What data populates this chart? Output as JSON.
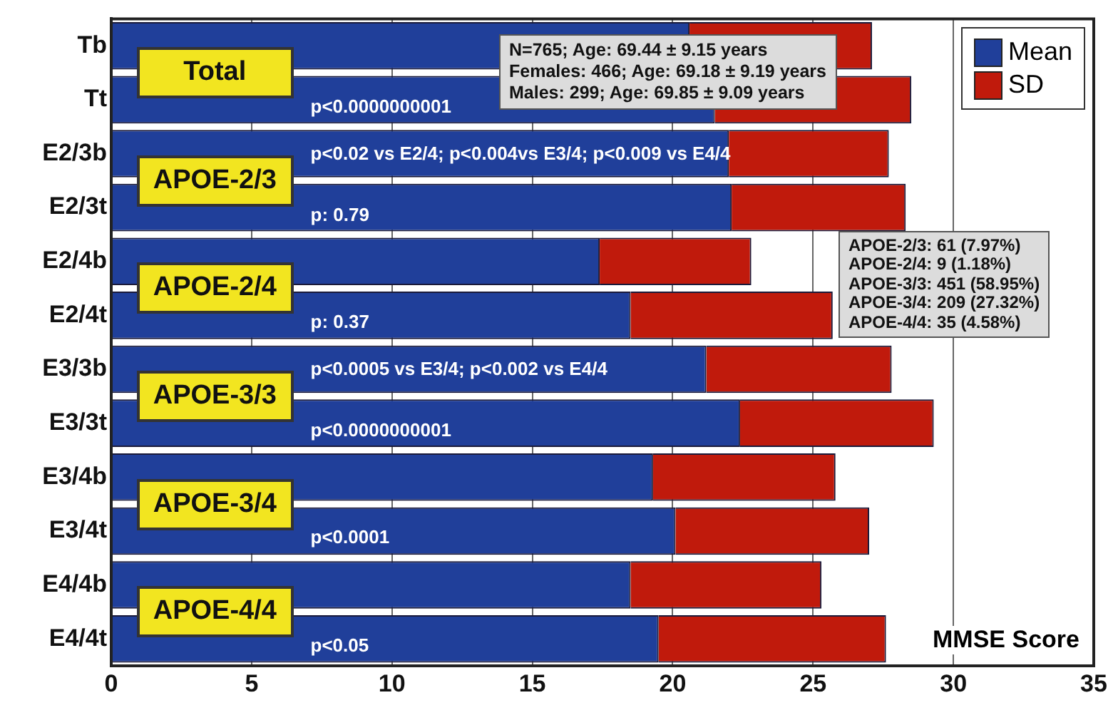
{
  "chart_data": {
    "type": "bar",
    "orientation": "horizontal",
    "stacked": true,
    "categories": [
      "Tb",
      "Tt",
      "E2/3b",
      "E2/3t",
      "E2/4b",
      "E2/4t",
      "E3/3b",
      "E3/3t",
      "E3/4b",
      "E3/4t",
      "E4/4b",
      "E4/4t"
    ],
    "series": [
      {
        "name": "Mean",
        "color": "#203f9a",
        "values": [
          20.6,
          21.5,
          22.0,
          22.1,
          17.4,
          18.5,
          21.2,
          22.4,
          19.3,
          20.1,
          18.5,
          19.5
        ]
      },
      {
        "name": "SD",
        "color": "#c01a0c",
        "values": [
          6.5,
          7.0,
          5.7,
          6.2,
          5.4,
          7.2,
          6.6,
          6.9,
          6.5,
          6.9,
          6.8,
          8.1
        ]
      }
    ],
    "xlabel": "MMSE Score",
    "xlim": [
      0,
      35
    ],
    "xticks": [
      0,
      5,
      10,
      15,
      20,
      25,
      30,
      35
    ],
    "grid": "x",
    "legend": "top right",
    "annotations": [
      "Total",
      "APOE-2/3",
      "APOE-2/4",
      "APOE-3/3",
      "APOE-3/4",
      "APOE-4/4",
      "p<0.0000000001",
      "p<0.02 vs E2/4; p<0.004vs E3/4; p<0.009 vs E4/4",
      "p: 0.79",
      "p: 0.37",
      "p<0.0005 vs E3/4; p<0.002 vs E4/4",
      "p<0.0000000001",
      "p<0.0001",
      "p<0.05",
      "N=765; Age: 69.44 ± 9.15 years\nFemales: 466; Age: 69.18 ± 9.19 years\nMales: 299; Age: 69.85 ± 9.09 years",
      "APOE-2/3: 61 (7.97%)\nAPOE-2/4: 9 (1.18%)\nAPOE-3/3: 451 (58.95%)\nAPOE-3/4: 209 (27.32%)\nAPOE-4/4: 35 (4.58%)"
    ]
  }
}
